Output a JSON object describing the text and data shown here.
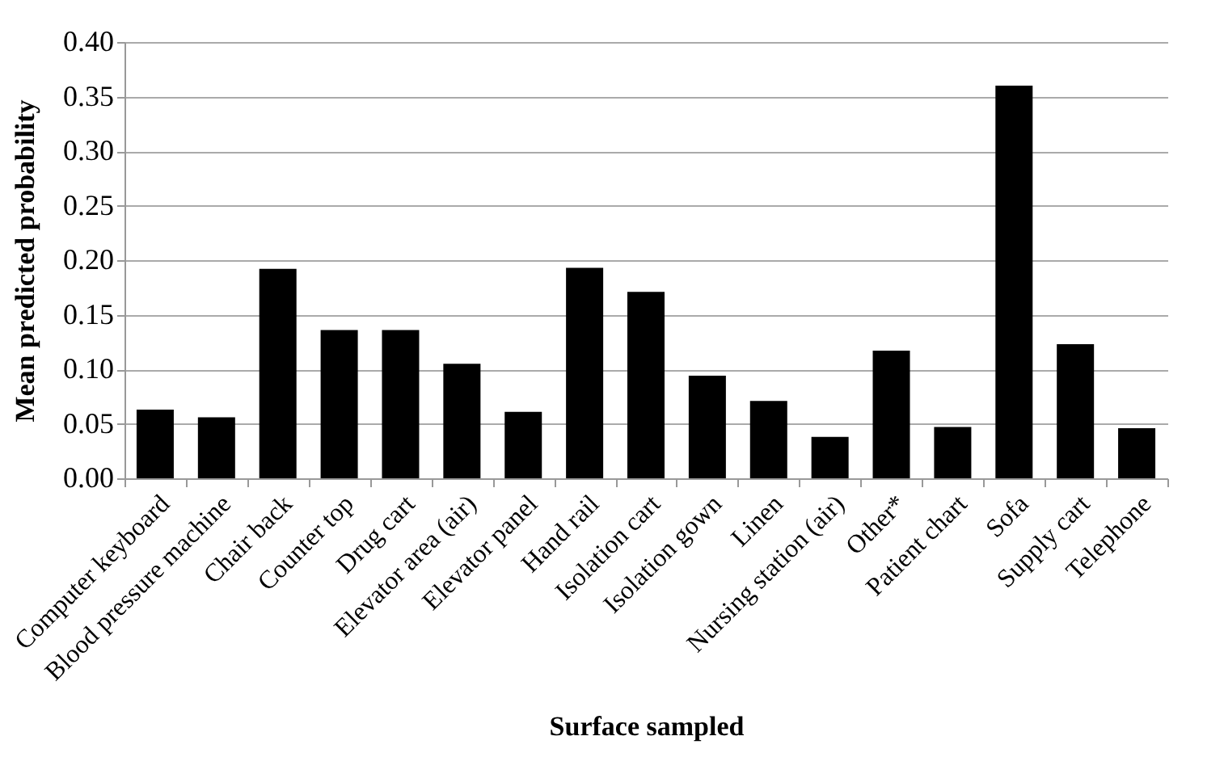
{
  "chart_data": {
    "type": "bar",
    "xlabel": "Surface sampled",
    "ylabel": "Mean predicted probability",
    "categories": [
      "Computer keyboard",
      "Blood pressure machine",
      "Chair back",
      "Counter top",
      "Drug cart",
      "Elevator area (air)",
      "Elevator panel",
      "Hand rail",
      "Isolation cart",
      "Isolation gown",
      "Linen",
      "Nursing station (air)",
      "Other*",
      "Patient chart",
      "Sofa",
      "Supply cart",
      "Telephone"
    ],
    "values": [
      0.063,
      0.056,
      0.192,
      0.136,
      0.136,
      0.105,
      0.061,
      0.193,
      0.171,
      0.094,
      0.071,
      0.038,
      0.117,
      0.047,
      0.36,
      0.123,
      0.046
    ],
    "color": "#000000",
    "ylim": [
      0,
      0.4
    ],
    "yticks": [
      {
        "value": 0,
        "label": "0.00"
      },
      0.05,
      {
        "value": 0.1,
        "label": "0.10"
      },
      0.15,
      {
        "value": 0.2,
        "label": "0.20"
      },
      0.25,
      {
        "value": 0.3,
        "label": "0.30"
      },
      0.35,
      {
        "value": 0.4,
        "label": "0.40"
      }
    ],
    "grid": "y"
  }
}
